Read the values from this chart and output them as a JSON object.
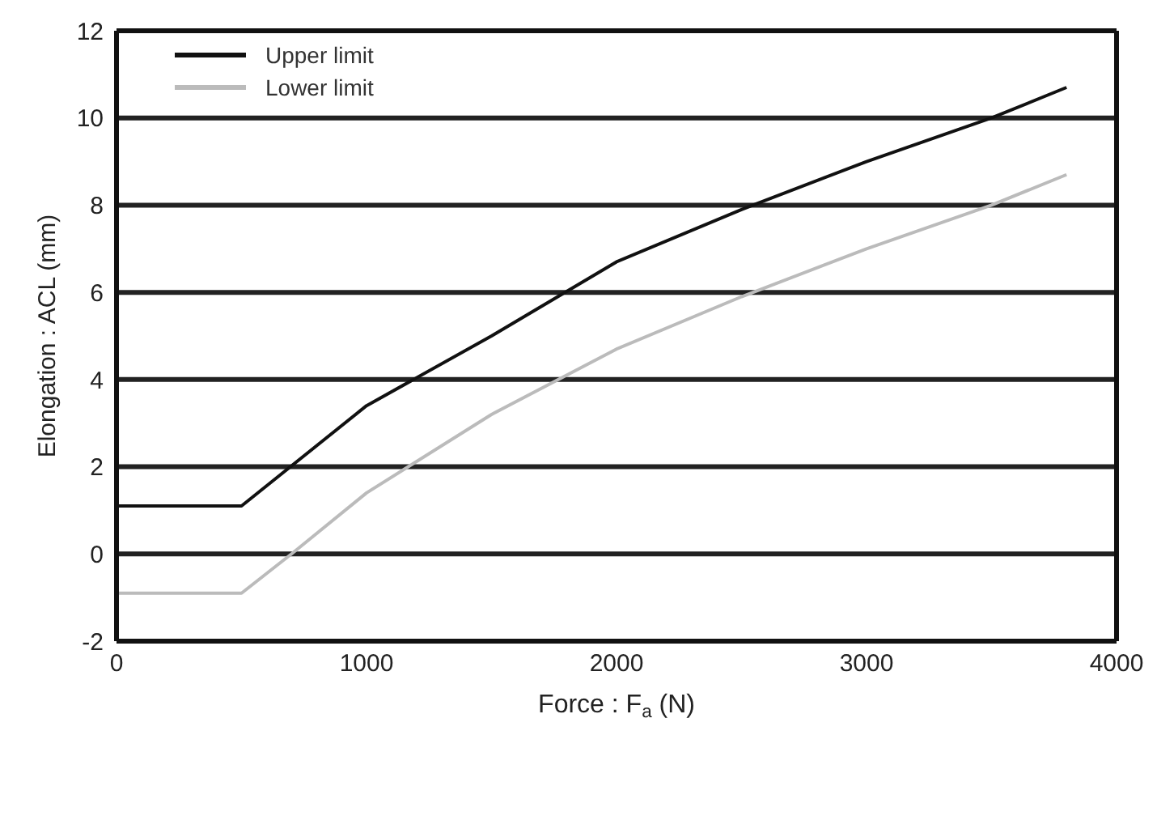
{
  "chart_data": {
    "type": "line",
    "xlabel": "Force : F$_{a}$ (N)",
    "ylabel": "Elongation : ACL (mm)",
    "xlim": [
      0,
      4000
    ],
    "xticks": [
      0,
      1000,
      2000,
      3000,
      4000
    ],
    "ylim": [
      -2,
      12
    ],
    "yticks": [
      -2,
      0,
      2,
      4,
      6,
      8,
      10,
      12
    ],
    "grid": "y",
    "legend": "top left",
    "marker": "none",
    "line_style": "solid",
    "series": [
      {
        "name": "Upper limit",
        "color": "#111111",
        "x": [
          0,
          500,
          1000,
          1500,
          2000,
          2500,
          3000,
          3500,
          3800
        ],
        "values": [
          1.1,
          1.1,
          3.4,
          5.0,
          6.7,
          7.9,
          9.0,
          10.0,
          10.7
        ]
      },
      {
        "name": "Lower limit",
        "color": "#bbbbbb",
        "x": [
          0,
          500,
          700,
          1000,
          1500,
          2000,
          2500,
          3000,
          3500,
          3800
        ],
        "values": [
          -0.9,
          -0.9,
          0.0,
          1.4,
          3.2,
          4.7,
          5.9,
          7.0,
          8.0,
          8.7
        ]
      }
    ]
  }
}
